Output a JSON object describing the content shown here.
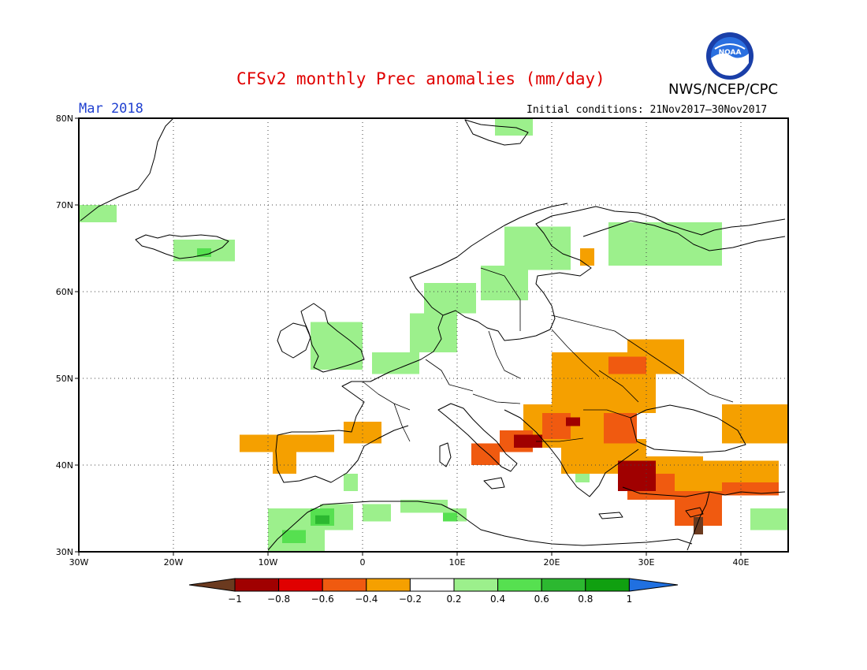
{
  "title": "CFSv2 monthly Prec anomalies (mm/day)",
  "agency": "NWS/NCEP/CPC",
  "logo_text": "NOAA",
  "month": "Mar 2018",
  "initial_conditions": "Initial conditions: 21Nov2017—30Nov2017",
  "map": {
    "lon_range": [
      -30,
      45
    ],
    "lat_range": [
      30,
      80
    ],
    "lat_labels": [
      "30N",
      "40N",
      "50N",
      "60N",
      "70N",
      "80N"
    ],
    "lon_labels": [
      "30W",
      "20W",
      "10W",
      "0",
      "10E",
      "20E",
      "30E",
      "40E"
    ],
    "grid": "dotted"
  },
  "colorbar": {
    "labels": [
      "−1",
      "−0.8",
      "−0.6",
      "−0.4",
      "−0.2",
      "0.2",
      "0.4",
      "0.6",
      "0.8",
      "1"
    ],
    "colors": [
      "#6b3a1f",
      "#a00000",
      "#e00000",
      "#f05a10",
      "#f5a000",
      "#ffffff",
      "#9cf08c",
      "#56e050",
      "#2cb830",
      "#10a010",
      "#2070e0"
    ]
  },
  "anomaly_patches": [
    {
      "color": "#f5a000",
      "lon": [
        20.0,
        31.0
      ],
      "lat": [
        46.0,
        53.0
      ]
    },
    {
      "color": "#f5a000",
      "lon": [
        28.0,
        34.0
      ],
      "lat": [
        50.5,
        54.5
      ]
    },
    {
      "color": "#f5a000",
      "lon": [
        17.0,
        26.0
      ],
      "lat": [
        42.0,
        47.0
      ]
    },
    {
      "color": "#f5a000",
      "lon": [
        21.0,
        30.0
      ],
      "lat": [
        39.0,
        43.0
      ]
    },
    {
      "color": "#f5a000",
      "lon": [
        27.0,
        36.0
      ],
      "lat": [
        37.0,
        41.0
      ]
    },
    {
      "color": "#f5a000",
      "lon": [
        35.0,
        44.0
      ],
      "lat": [
        36.5,
        40.5
      ]
    },
    {
      "color": "#f5a000",
      "lon": [
        38.0,
        45.0
      ],
      "lat": [
        42.5,
        47.0
      ]
    },
    {
      "color": "#f5a000",
      "lon": [
        -13.0,
        -3.0
      ],
      "lat": [
        41.5,
        43.5
      ]
    },
    {
      "color": "#f5a000",
      "lon": [
        -2.0,
        2.0
      ],
      "lat": [
        42.5,
        45.0
      ]
    },
    {
      "color": "#f5a000",
      "lon": [
        -9.5,
        -7.0
      ],
      "lat": [
        39.0,
        42.0
      ]
    },
    {
      "color": "#f5a000",
      "lon": [
        23.0,
        24.5
      ],
      "lat": [
        63.0,
        65.0
      ]
    },
    {
      "color": "#f05a10",
      "lon": [
        14.5,
        18.0
      ],
      "lat": [
        41.5,
        44.0
      ]
    },
    {
      "color": "#f05a10",
      "lon": [
        19.0,
        22.0
      ],
      "lat": [
        43.0,
        46.0
      ]
    },
    {
      "color": "#f05a10",
      "lon": [
        25.5,
        29.0
      ],
      "lat": [
        42.5,
        46.0
      ]
    },
    {
      "color": "#f05a10",
      "lon": [
        28.0,
        33.0
      ],
      "lat": [
        36.0,
        39.0
      ]
    },
    {
      "color": "#f05a10",
      "lon": [
        33.0,
        38.0
      ],
      "lat": [
        33.0,
        37.0
      ]
    },
    {
      "color": "#f05a10",
      "lon": [
        38.0,
        44.0
      ],
      "lat": [
        36.5,
        38.0
      ]
    },
    {
      "color": "#f05a10",
      "lon": [
        11.5,
        14.5
      ],
      "lat": [
        40.0,
        42.5
      ]
    },
    {
      "color": "#f05a10",
      "lon": [
        26.0,
        30.0
      ],
      "lat": [
        50.5,
        52.5
      ]
    },
    {
      "color": "#a00000",
      "lon": [
        27.0,
        31.0
      ],
      "lat": [
        37.0,
        40.5
      ]
    },
    {
      "color": "#a00000",
      "lon": [
        16.0,
        19.0
      ],
      "lat": [
        42.0,
        43.5
      ]
    },
    {
      "color": "#a00000",
      "lon": [
        21.5,
        23.0
      ],
      "lat": [
        44.5,
        45.5
      ]
    },
    {
      "color": "#6b3a1f",
      "lon": [
        35.0,
        36.0
      ],
      "lat": [
        32.0,
        34.0
      ]
    },
    {
      "color": "#9cf08c",
      "lon": [
        -30.0,
        -26.0
      ],
      "lat": [
        68.0,
        70.0
      ]
    },
    {
      "color": "#9cf08c",
      "lon": [
        -20.0,
        -13.5
      ],
      "lat": [
        63.5,
        66.0
      ]
    },
    {
      "color": "#9cf08c",
      "lon": [
        -5.5,
        0.0
      ],
      "lat": [
        51.0,
        56.5
      ]
    },
    {
      "color": "#9cf08c",
      "lon": [
        1.0,
        6.0
      ],
      "lat": [
        50.5,
        53.0
      ]
    },
    {
      "color": "#9cf08c",
      "lon": [
        5.0,
        10.0
      ],
      "lat": [
        53.0,
        57.5
      ]
    },
    {
      "color": "#9cf08c",
      "lon": [
        6.5,
        12.0
      ],
      "lat": [
        57.5,
        61.0
      ]
    },
    {
      "color": "#9cf08c",
      "lon": [
        12.5,
        17.5
      ],
      "lat": [
        59.0,
        63.0
      ]
    },
    {
      "color": "#9cf08c",
      "lon": [
        15.0,
        22.0
      ],
      "lat": [
        62.5,
        67.5
      ]
    },
    {
      "color": "#9cf08c",
      "lon": [
        26.0,
        31.0
      ],
      "lat": [
        63.0,
        68.0
      ]
    },
    {
      "color": "#9cf08c",
      "lon": [
        31.0,
        38.0
      ],
      "lat": [
        63.0,
        68.0
      ]
    },
    {
      "color": "#9cf08c",
      "lon": [
        14.0,
        18.0
      ],
      "lat": [
        78.0,
        80.0
      ]
    },
    {
      "color": "#9cf08c",
      "lon": [
        -10.0,
        -4.0
      ],
      "lat": [
        30.0,
        35.0
      ]
    },
    {
      "color": "#9cf08c",
      "lon": [
        -4.5,
        -1.0
      ],
      "lat": [
        32.5,
        35.5
      ]
    },
    {
      "color": "#9cf08c",
      "lon": [
        0.0,
        3.0
      ],
      "lat": [
        33.5,
        35.5
      ]
    },
    {
      "color": "#9cf08c",
      "lon": [
        4.0,
        9.0
      ],
      "lat": [
        34.5,
        36.0
      ]
    },
    {
      "color": "#9cf08c",
      "lon": [
        9.0,
        11.0
      ],
      "lat": [
        33.5,
        35.0
      ]
    },
    {
      "color": "#9cf08c",
      "lon": [
        -2.0,
        -0.5
      ],
      "lat": [
        37.0,
        39.0
      ]
    },
    {
      "color": "#9cf08c",
      "lon": [
        41.0,
        45.0
      ],
      "lat": [
        32.5,
        35.0
      ]
    },
    {
      "color": "#9cf08c",
      "lon": [
        22.5,
        24.0
      ],
      "lat": [
        38.0,
        39.0
      ]
    },
    {
      "color": "#56e050",
      "lon": [
        -5.5,
        -3.0
      ],
      "lat": [
        33.0,
        35.0
      ]
    },
    {
      "color": "#56e050",
      "lon": [
        -8.5,
        -6.0
      ],
      "lat": [
        31.0,
        32.5
      ]
    },
    {
      "color": "#56e050",
      "lon": [
        -17.5,
        -16.0
      ],
      "lat": [
        64.0,
        65.0
      ]
    },
    {
      "color": "#56e050",
      "lon": [
        8.5,
        10.0
      ],
      "lat": [
        33.5,
        34.5
      ]
    },
    {
      "color": "#2cb830",
      "lon": [
        -5.0,
        -3.5
      ],
      "lat": [
        33.2,
        34.2
      ]
    }
  ]
}
